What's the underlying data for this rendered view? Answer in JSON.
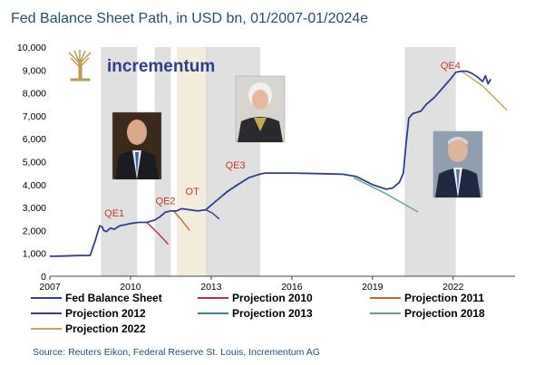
{
  "chart_data": {
    "type": "line",
    "title": "Fed Balance Sheet Path, in USD bn, 01/2007-01/2024e",
    "xlabel": "",
    "ylabel": "",
    "xlim": [
      2007,
      2024.3
    ],
    "ylim": [
      0,
      10000
    ],
    "x_ticks": [
      2007,
      2010,
      2013,
      2016,
      2019,
      2022
    ],
    "y_ticks": [
      0,
      1000,
      2000,
      3000,
      4000,
      5000,
      6000,
      7000,
      8000,
      9000,
      10000
    ],
    "y_tick_labels": [
      "0",
      "1,000",
      "2,000",
      "3,000",
      "4,000",
      "5,000",
      "6,000",
      "7,000",
      "8,000",
      "9,000",
      "10,000"
    ],
    "grid": false,
    "legend_position": "bottom",
    "shaded_periods": [
      {
        "label": "QE1",
        "start": 2008.9,
        "end": 2010.25,
        "color": "#dadada"
      },
      {
        "label": "QE2",
        "start": 2010.9,
        "end": 2011.5,
        "color": "#dadada"
      },
      {
        "label": "OT",
        "start": 2011.72,
        "end": 2012.95,
        "color": "#f2ead8"
      },
      {
        "label": "QE3",
        "start": 2012.8,
        "end": 2014.83,
        "color": "#dadada"
      },
      {
        "label": "QE4",
        "start": 2020.2,
        "end": 2022.1,
        "color": "#dadada"
      }
    ],
    "annotations": [
      {
        "text": "QE1",
        "x": 2009.4,
        "y": 2600,
        "color": "#c0392b"
      },
      {
        "text": "QE2",
        "x": 2011.3,
        "y": 3150,
        "color": "#c0392b"
      },
      {
        "text": "OT",
        "x": 2012.3,
        "y": 3550,
        "color": "#c0392b"
      },
      {
        "text": "QE3",
        "x": 2013.9,
        "y": 4700,
        "color": "#c0392b"
      },
      {
        "text": "QE4",
        "x": 2021.9,
        "y": 9050,
        "color": "#c0392b"
      }
    ],
    "series": [
      {
        "name": "Fed Balance Sheet",
        "color": "#2e3f8f",
        "x": [
          2007.0,
          2007.5,
          2008.0,
          2008.5,
          2008.7,
          2008.85,
          2008.95,
          2009.0,
          2009.1,
          2009.25,
          2009.4,
          2009.6,
          2009.8,
          2010.0,
          2010.3,
          2010.6,
          2010.9,
          2011.1,
          2011.3,
          2011.5,
          2011.7,
          2011.9,
          2012.2,
          2012.5,
          2012.8,
          2013.0,
          2013.3,
          2013.6,
          2014.0,
          2014.4,
          2014.8,
          2015.0,
          2016.0,
          2017.0,
          2017.9,
          2018.4,
          2019.0,
          2019.5,
          2019.75,
          2020.0,
          2020.15,
          2020.25,
          2020.35,
          2020.5,
          2020.8,
          2021.0,
          2021.3,
          2021.6,
          2021.9,
          2022.1,
          2022.3,
          2022.5,
          2022.7,
          2022.9,
          2023.1,
          2023.2,
          2023.3,
          2023.4
        ],
        "y": [
          870,
          880,
          900,
          910,
          1600,
          2200,
          2150,
          2000,
          1950,
          2100,
          2050,
          2200,
          2250,
          2300,
          2350,
          2350,
          2450,
          2600,
          2800,
          2850,
          2850,
          2950,
          2900,
          2850,
          2900,
          3100,
          3400,
          3700,
          4000,
          4300,
          4450,
          4500,
          4500,
          4480,
          4450,
          4350,
          4000,
          3800,
          3850,
          4100,
          4500,
          5800,
          6900,
          7100,
          7200,
          7500,
          7800,
          8200,
          8600,
          8900,
          8950,
          8950,
          8850,
          8700,
          8500,
          8750,
          8400,
          8600
        ]
      },
      {
        "name": "Projection 2010",
        "color": "#b5334f",
        "x": [
          2010.6,
          2011.0,
          2011.4
        ],
        "y": [
          2350,
          1900,
          1400
        ]
      },
      {
        "name": "Projection 2011",
        "color": "#c06a2b",
        "x": [
          2011.6,
          2011.9,
          2012.2
        ],
        "y": [
          2850,
          2450,
          2000
        ]
      },
      {
        "name": "Projection 2012",
        "color": "#2e3f8f",
        "x": [
          2012.8,
          2013.05,
          2013.3
        ],
        "y": [
          2900,
          2750,
          2500
        ]
      },
      {
        "name": "Projection 2013",
        "color": "#2e8b8f",
        "x": [
          2013.3,
          2013.9,
          2014.4
        ],
        "y": [
          3400,
          3950,
          4300
        ]
      },
      {
        "name": "Projection 2018",
        "color": "#5aa77a",
        "x": [
          2018.3,
          2019.5,
          2020.7
        ],
        "y": [
          4300,
          3600,
          2800
        ]
      },
      {
        "name": "Projection 2022",
        "color": "#c9a64b",
        "x": [
          2022.3,
          2023.1,
          2024.0
        ],
        "y": [
          8950,
          8300,
          7250
        ]
      }
    ]
  },
  "logo": {
    "text": "incrementum"
  },
  "portraits": [
    {
      "name": "portrait-1"
    },
    {
      "name": "portrait-2"
    },
    {
      "name": "portrait-3"
    }
  ],
  "source": "Source: Reuters Eikon, Federal Reserve St. Louis, Incrementum AG"
}
